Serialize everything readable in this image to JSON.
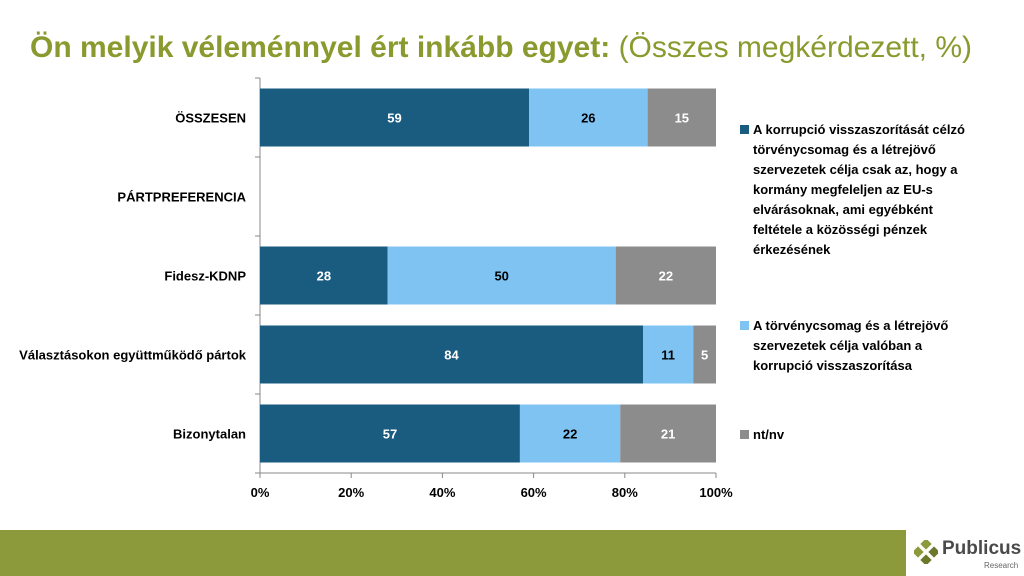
{
  "title": {
    "bold": "Ön melyik véleménnyel ért inkább egyet:",
    "light": " (Összes megkérdezett, %)"
  },
  "colors": {
    "series": [
      "#1a5b80",
      "#7fc3f3",
      "#8c8c8c"
    ],
    "title": "#8a9a2e",
    "footer": "#8d9a3b"
  },
  "chart_data": {
    "type": "bar",
    "orientation": "horizontal",
    "stacked": true,
    "categories": [
      "ÖSSZESEN",
      "PÁRTPREFERENCIA",
      "Fidesz-KDNP",
      "Választásokon együttműködő pártok",
      "Bizonytalan"
    ],
    "series": [
      {
        "name": "A korrupció visszaszorítását célzó törvénycsomag és a létrejövő szervezetek célja csak az, hogy a kormány megfeleljen az EU-s elvárásoknak, ami egyébként feltétele a közösségi pénzek érkezésének",
        "values": [
          59,
          null,
          28,
          84,
          57
        ]
      },
      {
        "name": "A törvénycsomag és a létrejövő szervezetek célja valóban a korrupció visszaszorítása",
        "values": [
          26,
          null,
          50,
          11,
          22
        ]
      },
      {
        "name": "nt/nv",
        "values": [
          15,
          null,
          22,
          5,
          21
        ]
      }
    ],
    "xlim": [
      0,
      100
    ],
    "xticks": [
      "0%",
      "20%",
      "40%",
      "60%",
      "80%",
      "100%"
    ],
    "legend": "right",
    "grid": false
  },
  "logo": {
    "name": "Publicus",
    "sub": "Research"
  }
}
